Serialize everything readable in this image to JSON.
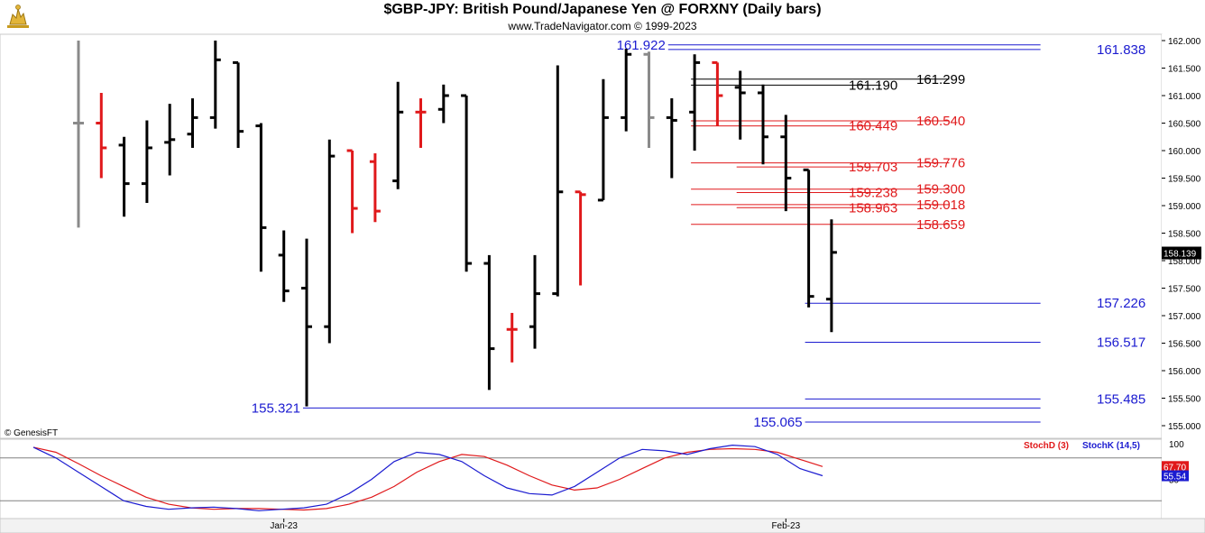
{
  "header": {
    "title": "$GBP-JPY:  British Pound/Japanese Yen @ FORXNY  (Daily bars)",
    "copyright": "www.TradeNavigator.com © 1999-2023",
    "logo_icon": "bull-bear-logo-icon"
  },
  "watermark": "© GenesisFT",
  "colors": {
    "up_bar": "#000000",
    "down_bar": "#e0191b",
    "neutral_bar": "#8a8a8a",
    "blue_level": "#1b1bd0",
    "red_level": "#e0191b",
    "black_level": "#000000",
    "stoch_d": "#e0191b",
    "stoch_k": "#1b1bd0"
  },
  "chart_data": [
    {
      "type": "ohlc",
      "title": "$GBP-JPY:  British Pound/Japanese Yen @ FORXNY  (Daily bars)",
      "ylim": [
        154.7,
        162.1
      ],
      "yticks": [
        "162.000",
        "161.500",
        "161.000",
        "160.500",
        "160.000",
        "159.500",
        "159.000",
        "158.500",
        "158.000",
        "157.500",
        "157.000",
        "156.500",
        "156.000",
        "155.500",
        "155.000"
      ],
      "ytick_values": [
        162,
        161.5,
        161,
        160.5,
        160,
        159.5,
        159,
        158.5,
        158,
        157.5,
        157,
        156.5,
        156,
        155.5,
        155
      ],
      "last_price": "158.139",
      "last_value": 158.139,
      "x_labels": [
        {
          "label": "Jan-23",
          "index": 9
        },
        {
          "label": "Feb-23",
          "index": 31
        }
      ],
      "bars": [
        {
          "o": 160.5,
          "h": 162.0,
          "l": 158.6,
          "c": 160.5,
          "color": "neutral"
        },
        {
          "o": 160.5,
          "h": 161.05,
          "l": 159.5,
          "c": 160.05,
          "color": "down"
        },
        {
          "o": 160.1,
          "h": 160.25,
          "l": 158.8,
          "c": 159.4,
          "color": "up"
        },
        {
          "o": 159.4,
          "h": 160.55,
          "l": 159.05,
          "c": 160.05,
          "color": "up"
        },
        {
          "o": 160.15,
          "h": 160.85,
          "l": 159.55,
          "c": 160.2,
          "color": "up"
        },
        {
          "o": 160.3,
          "h": 160.95,
          "l": 160.05,
          "c": 160.6,
          "color": "up"
        },
        {
          "o": 160.6,
          "h": 162.0,
          "l": 160.4,
          "c": 161.65,
          "color": "up"
        },
        {
          "o": 161.6,
          "h": 161.6,
          "l": 160.05,
          "c": 160.35,
          "color": "up"
        },
        {
          "o": 160.45,
          "h": 160.5,
          "l": 157.8,
          "c": 158.6,
          "color": "up"
        },
        {
          "o": 158.1,
          "h": 158.55,
          "l": 157.25,
          "c": 157.45,
          "color": "up"
        },
        {
          "o": 157.5,
          "h": 158.4,
          "l": 155.35,
          "c": 156.8,
          "color": "up"
        },
        {
          "o": 156.8,
          "h": 160.2,
          "l": 156.5,
          "c": 159.9,
          "color": "up"
        },
        {
          "o": 160.0,
          "h": 160.0,
          "l": 158.5,
          "c": 158.95,
          "color": "down"
        },
        {
          "o": 159.8,
          "h": 159.95,
          "l": 158.7,
          "c": 158.9,
          "color": "down"
        },
        {
          "o": 159.45,
          "h": 161.25,
          "l": 159.3,
          "c": 160.7,
          "color": "up"
        },
        {
          "o": 160.7,
          "h": 160.95,
          "l": 160.05,
          "c": 160.7,
          "color": "down"
        },
        {
          "o": 160.75,
          "h": 161.2,
          "l": 160.5,
          "c": 161.0,
          "color": "up"
        },
        {
          "o": 161.0,
          "h": 161.0,
          "l": 157.8,
          "c": 157.95,
          "color": "up"
        },
        {
          "o": 157.95,
          "h": 158.1,
          "l": 155.65,
          "c": 156.4,
          "color": "up"
        },
        {
          "o": 156.75,
          "h": 157.05,
          "l": 156.15,
          "c": 156.75,
          "color": "down"
        },
        {
          "o": 156.8,
          "h": 158.1,
          "l": 156.4,
          "c": 157.4,
          "color": "up"
        },
        {
          "o": 157.4,
          "h": 161.55,
          "l": 157.35,
          "c": 159.25,
          "color": "up"
        },
        {
          "o": 159.25,
          "h": 159.25,
          "l": 157.55,
          "c": 159.2,
          "color": "down"
        },
        {
          "o": 159.1,
          "h": 161.3,
          "l": 159.1,
          "c": 160.6,
          "color": "up"
        },
        {
          "o": 160.6,
          "h": 161.85,
          "l": 160.35,
          "c": 161.75,
          "color": "up"
        },
        {
          "o": 161.75,
          "h": 161.8,
          "l": 160.05,
          "c": 160.6,
          "color": "neutral"
        },
        {
          "o": 160.6,
          "h": 160.95,
          "l": 159.5,
          "c": 160.55,
          "color": "up"
        },
        {
          "o": 160.7,
          "h": 161.75,
          "l": 160.0,
          "c": 161.6,
          "color": "up"
        },
        {
          "o": 161.6,
          "h": 161.6,
          "l": 160.45,
          "c": 161.0,
          "color": "down"
        },
        {
          "o": 161.15,
          "h": 161.45,
          "l": 160.2,
          "c": 161.05,
          "color": "up"
        },
        {
          "o": 161.05,
          "h": 161.2,
          "l": 159.75,
          "c": 160.25,
          "color": "up"
        },
        {
          "o": 160.25,
          "h": 160.65,
          "l": 158.9,
          "c": 159.5,
          "color": "up"
        },
        {
          "o": 159.65,
          "h": 159.65,
          "l": 157.15,
          "c": 157.35,
          "color": "up"
        },
        {
          "o": 157.3,
          "h": 158.75,
          "l": 156.7,
          "c": 158.15,
          "color": "up"
        }
      ],
      "levels": [
        {
          "label": "161.922",
          "value": 161.922,
          "color": "blue",
          "x0": 26.0,
          "x1": 42.0,
          "label_side": "left"
        },
        {
          "label": "161.838",
          "value": 161.838,
          "color": "blue",
          "x0": 26.0,
          "x1": 42.0,
          "label_side": "right"
        },
        {
          "label": "161.190",
          "value": 161.19,
          "color": "black",
          "x0": 27.0,
          "x1": 35.0,
          "label_side": "right"
        },
        {
          "label": "161.299",
          "value": 161.299,
          "color": "black",
          "x0": 27.0,
          "x1": 38.0,
          "label_side": "right"
        },
        {
          "label": "160.449",
          "value": 160.449,
          "color": "red",
          "x0": 27.0,
          "x1": 35.0,
          "label_side": "right"
        },
        {
          "label": "160.540",
          "value": 160.54,
          "color": "red",
          "x0": 27.0,
          "x1": 38.0,
          "label_side": "right"
        },
        {
          "label": "159.703",
          "value": 159.703,
          "color": "red",
          "x0": 29.0,
          "x1": 35.0,
          "label_side": "right"
        },
        {
          "label": "159.776",
          "value": 159.776,
          "color": "red",
          "x0": 27.0,
          "x1": 38.0,
          "label_side": "right"
        },
        {
          "label": "159.238",
          "value": 159.238,
          "color": "red",
          "x0": 29.0,
          "x1": 35.0,
          "label_side": "right"
        },
        {
          "label": "159.300",
          "value": 159.3,
          "color": "red",
          "x0": 27.0,
          "x1": 38.0,
          "label_side": "right"
        },
        {
          "label": "158.963",
          "value": 158.963,
          "color": "red",
          "x0": 29.0,
          "x1": 35.0,
          "label_side": "right"
        },
        {
          "label": "159.018",
          "value": 159.018,
          "color": "red",
          "x0": 27.0,
          "x1": 38.0,
          "label_side": "right"
        },
        {
          "label": "158.659",
          "value": 158.659,
          "color": "red",
          "x0": 27.0,
          "x1": 38.0,
          "label_side": "right"
        },
        {
          "label": "157.226",
          "value": 157.226,
          "color": "blue",
          "x0": 32.0,
          "x1": 42.0,
          "label_side": "right"
        },
        {
          "label": "156.517",
          "value": 156.517,
          "color": "blue",
          "x0": 32.0,
          "x1": 42.0,
          "label_side": "right"
        },
        {
          "label": "155.485",
          "value": 155.485,
          "color": "blue",
          "x0": 32.0,
          "x1": 42.0,
          "label_side": "right"
        },
        {
          "label": "155.321",
          "value": 155.321,
          "color": "blue",
          "x0": 10.0,
          "x1": 42.0,
          "label_side": "left"
        },
        {
          "label": "155.065",
          "value": 155.065,
          "color": "blue",
          "x0": 32.0,
          "x1": 42.0,
          "label_side": "left"
        }
      ]
    },
    {
      "type": "line",
      "title": "",
      "ylim": [
        0,
        100
      ],
      "yticks": [
        "100",
        "50"
      ],
      "ytick_values": [
        100,
        50
      ],
      "hlines": [
        80,
        20
      ],
      "series": [
        {
          "name": "StochD (3)",
          "color": "#e0191b",
          "last_label": "67.70",
          "values": [
            95,
            88,
            72,
            55,
            40,
            25,
            15,
            10,
            8,
            9,
            9,
            8,
            7,
            9,
            15,
            25,
            40,
            60,
            75,
            85,
            82,
            70,
            55,
            42,
            35,
            38,
            50,
            65,
            80,
            88,
            92,
            93,
            92,
            88,
            78,
            68
          ]
        },
        {
          "name": "StochK (14,5)",
          "color": "#1b1bd0",
          "last_label": "55.54",
          "values": [
            95,
            80,
            60,
            40,
            20,
            12,
            8,
            10,
            11,
            9,
            6,
            8,
            10,
            15,
            30,
            50,
            75,
            88,
            85,
            75,
            55,
            38,
            30,
            28,
            40,
            60,
            80,
            92,
            90,
            85,
            93,
            98,
            96,
            85,
            65,
            55
          ]
        }
      ],
      "x_labels": [
        {
          "label": "Jan-23",
          "index": 9
        },
        {
          "label": "Feb-23",
          "index": 31
        }
      ]
    }
  ]
}
